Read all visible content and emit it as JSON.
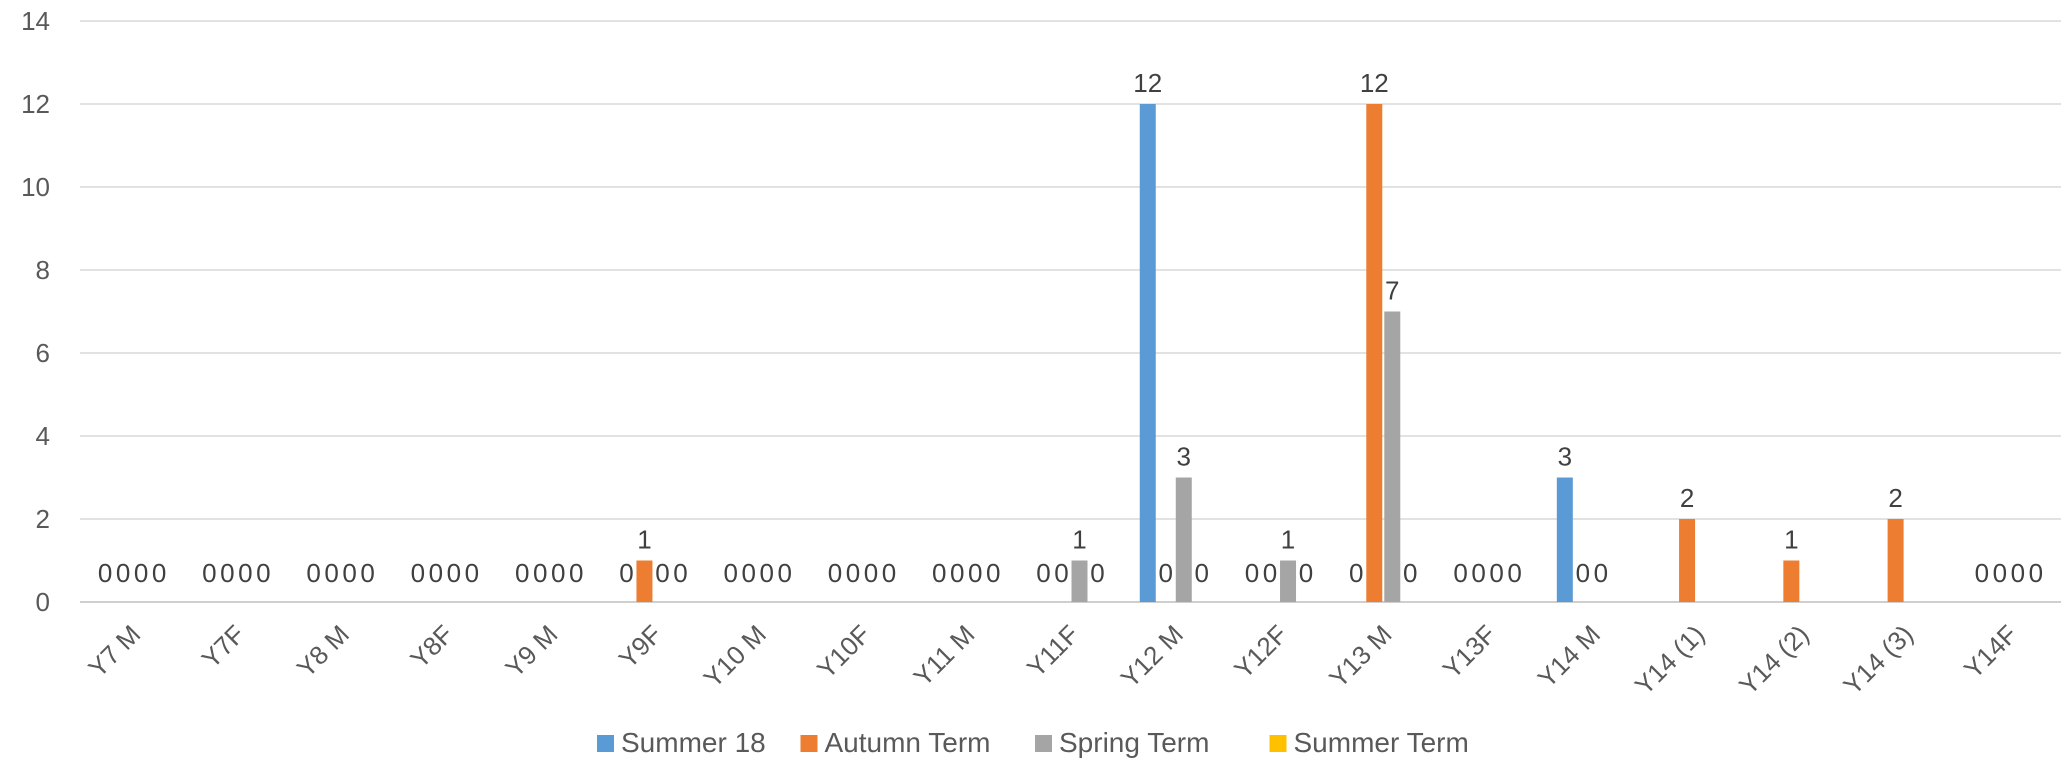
{
  "chart_data": {
    "type": "bar",
    "title": "",
    "xlabel": "",
    "ylabel": "",
    "ylim": [
      0,
      14
    ],
    "yticks": [
      0,
      2,
      4,
      6,
      8,
      10,
      12,
      14
    ],
    "grid": true,
    "legend_position": "bottom",
    "categories": [
      "Y7 M",
      "Y7F",
      "Y8 M",
      "Y8F",
      "Y9 M",
      "Y9F",
      "Y10 M",
      "Y10F",
      "Y11 M",
      "Y11F",
      "Y12 M",
      "Y12F",
      "Y13 M",
      "Y13F",
      "Y14 M",
      "Y14 (1)",
      "Y14 (2)",
      "Y14 (3)",
      "Y14F"
    ],
    "series": [
      {
        "name": "Summer 18",
        "color": "#5B9BD5",
        "values": [
          0,
          0,
          0,
          0,
          0,
          0,
          0,
          0,
          0,
          0,
          12,
          0,
          0,
          0,
          3,
          null,
          null,
          null,
          0
        ]
      },
      {
        "name": "Autumn Term",
        "color": "#ED7D31",
        "values": [
          0,
          0,
          0,
          0,
          0,
          1,
          0,
          0,
          0,
          0,
          0,
          0,
          12,
          0,
          0,
          2,
          1,
          2,
          0
        ]
      },
      {
        "name": "Spring Term",
        "color": "#A5A5A5",
        "values": [
          0,
          0,
          0,
          0,
          0,
          0,
          0,
          0,
          0,
          1,
          3,
          1,
          7,
          0,
          0,
          null,
          null,
          null,
          0
        ]
      },
      {
        "name": "Summer Term",
        "color": "#FFC000",
        "values": [
          0,
          0,
          0,
          0,
          0,
          0,
          0,
          0,
          0,
          0,
          0,
          0,
          0,
          0,
          null,
          null,
          null,
          null,
          0
        ]
      }
    ]
  }
}
